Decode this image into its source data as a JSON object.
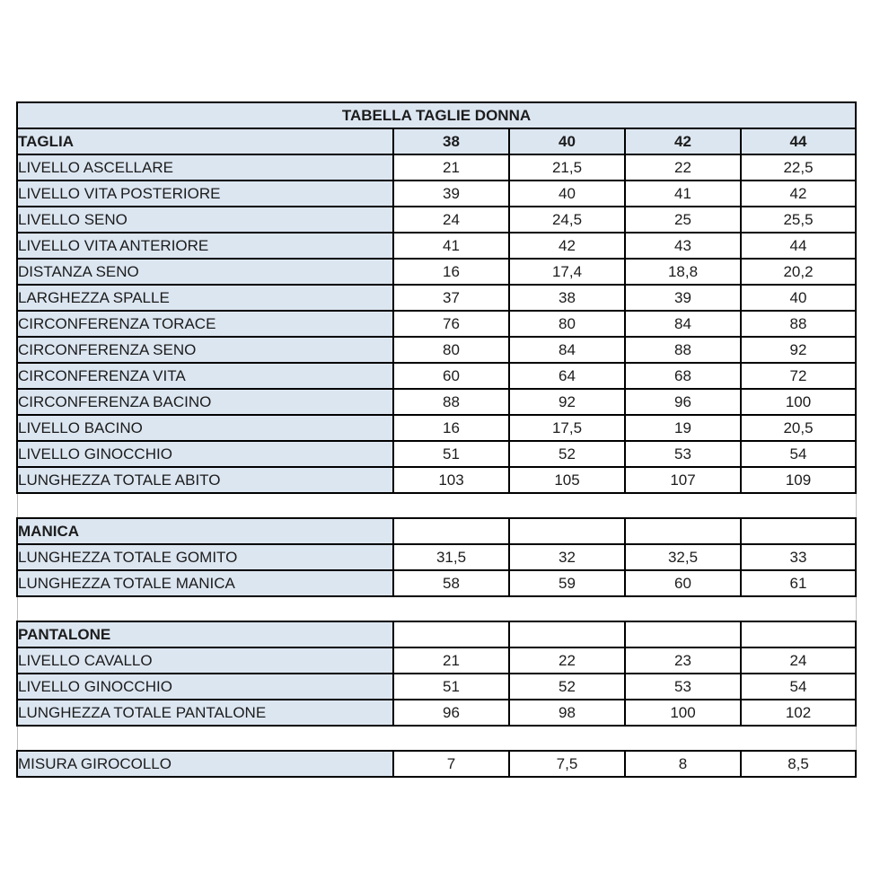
{
  "table": {
    "title": "TABELLA TAGLIE DONNA",
    "header": {
      "label": "TAGLIA",
      "sizes": [
        "38",
        "40",
        "42",
        "44"
      ]
    },
    "sections": [
      {
        "header": null,
        "rows": [
          {
            "label": "LIVELLO ASCELLARE",
            "values": [
              "21",
              "21,5",
              "22",
              "22,5"
            ]
          },
          {
            "label": "LIVELLO VITA POSTERIORE",
            "values": [
              "39",
              "40",
              "41",
              "42"
            ]
          },
          {
            "label": "LIVELLO SENO",
            "values": [
              "24",
              "24,5",
              "25",
              "25,5"
            ]
          },
          {
            "label": "LIVELLO VITA ANTERIORE",
            "values": [
              "41",
              "42",
              "43",
              "44"
            ]
          },
          {
            "label": "DISTANZA SENO",
            "values": [
              "16",
              "17,4",
              "18,8",
              "20,2"
            ]
          },
          {
            "label": "LARGHEZZA SPALLE",
            "values": [
              "37",
              "38",
              "39",
              "40"
            ]
          },
          {
            "label": "CIRCONFERENZA TORACE",
            "values": [
              "76",
              "80",
              "84",
              "88"
            ]
          },
          {
            "label": "CIRCONFERENZA SENO",
            "values": [
              "80",
              "84",
              "88",
              "92"
            ]
          },
          {
            "label": "CIRCONFERENZA VITA",
            "values": [
              "60",
              "64",
              "68",
              "72"
            ]
          },
          {
            "label": "CIRCONFERENZA BACINO",
            "values": [
              "88",
              "92",
              "96",
              "100"
            ]
          },
          {
            "label": "LIVELLO BACINO",
            "values": [
              "16",
              "17,5",
              "19",
              "20,5"
            ]
          },
          {
            "label": "LIVELLO GINOCCHIO",
            "values": [
              "51",
              "52",
              "53",
              "54"
            ]
          },
          {
            "label": "LUNGHEZZA TOTALE ABITO",
            "values": [
              "103",
              "105",
              "107",
              "109"
            ]
          }
        ]
      },
      {
        "header": "MANICA",
        "rows": [
          {
            "label": "LUNGHEZZA TOTALE GOMITO",
            "values": [
              "31,5",
              "32",
              "32,5",
              "33"
            ]
          },
          {
            "label": "LUNGHEZZA TOTALE MANICA",
            "values": [
              "58",
              "59",
              "60",
              "61"
            ]
          }
        ]
      },
      {
        "header": "PANTALONE",
        "rows": [
          {
            "label": "LIVELLO CAVALLO",
            "values": [
              "21",
              "22",
              "23",
              "24"
            ]
          },
          {
            "label": "LIVELLO GINOCCHIO",
            "values": [
              "51",
              "52",
              "53",
              "54"
            ]
          },
          {
            "label": "LUNGHEZZA TOTALE PANTALONE",
            "values": [
              "96",
              "98",
              "100",
              "102"
            ]
          }
        ]
      },
      {
        "header": null,
        "rows": [
          {
            "label": "MISURA GIROCOLLO",
            "values": [
              "7",
              "7,5",
              "8",
              "8,5"
            ]
          }
        ]
      }
    ]
  },
  "colors": {
    "header_bg": "#dce6f1",
    "cell_bg": "#ffffff",
    "border": "#000000",
    "spacer_border": "#bdbdbd",
    "text": "#1c1c1c"
  }
}
